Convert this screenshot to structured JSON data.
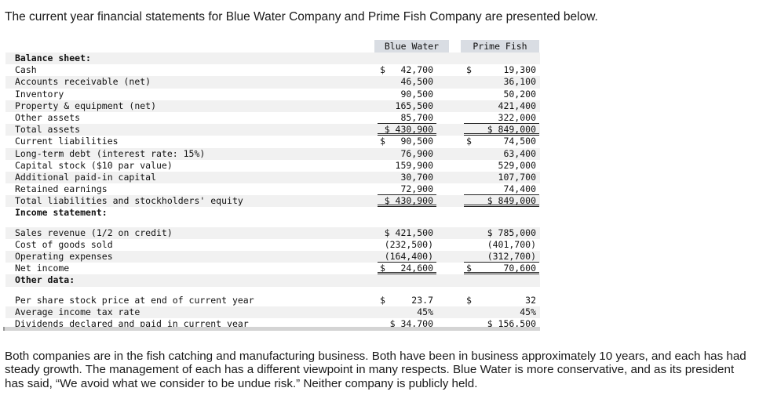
{
  "intro": "The current year financial statements for Blue Water Company and Prime Fish Company are presented below.",
  "columns": {
    "blue_water": "Blue Water",
    "prime_fish": "Prime Fish"
  },
  "rows": [
    {
      "label": "Balance sheet:",
      "bold": true,
      "shade": true
    },
    {
      "label": "Cash",
      "shade": false,
      "bw": "42,700",
      "bw_dollar": "$",
      "pf": "19,300",
      "pf_dollar": "$"
    },
    {
      "label": "Accounts receivable (net)",
      "shade": true,
      "bw": "46,500",
      "pf": "36,100"
    },
    {
      "label": "Inventory",
      "shade": false,
      "bw": "90,500",
      "pf": "50,200"
    },
    {
      "label": "Property & equipment (net)",
      "shade": true,
      "bw": "165,500",
      "pf": "421,400"
    },
    {
      "label": "Other assets",
      "shade": false,
      "bw": "85,700",
      "pf": "322,000",
      "rule": "single"
    },
    {
      "label": "Total assets",
      "shade": true,
      "bw": "$ 430,900",
      "pf": "$ 849,000",
      "rule": "double"
    },
    {
      "label": "Current liabilities",
      "shade": false,
      "bw": "90,500",
      "bw_dollar": "$",
      "pf": "74,500",
      "pf_dollar": "$"
    },
    {
      "label": "Long-term debt (interest rate: 15%)",
      "shade": true,
      "bw": "76,900",
      "pf": "63,400"
    },
    {
      "label": "Capital stock ($10 par value)",
      "shade": false,
      "bw": "159,900",
      "pf": "529,000"
    },
    {
      "label": "Additional paid-in capital",
      "shade": true,
      "bw": "30,700",
      "pf": "107,700"
    },
    {
      "label": "Retained earnings",
      "shade": false,
      "bw": "72,900",
      "pf": "74,400",
      "rule": "single"
    },
    {
      "label": "Total liabilities and stockholders' equity",
      "shade": true,
      "bw": "$ 430,900",
      "pf": "$ 849,000",
      "rule": "double"
    },
    {
      "label": "Income statement:",
      "bold": true,
      "shade": false,
      "gap_after": true
    },
    {
      "label": "Sales revenue (1/2 on credit)",
      "shade": true,
      "bw": "$ 421,500",
      "pf": "$ 785,000"
    },
    {
      "label": "Cost of goods sold",
      "shade": false,
      "bw": "(232,500)",
      "pf": "(401,700)"
    },
    {
      "label": "Operating expenses",
      "shade": true,
      "bw": "(164,400)",
      "pf": "(312,700)",
      "rule": "single"
    },
    {
      "label": "Net income",
      "shade": false,
      "bw": "24,600",
      "bw_dollar": "$",
      "pf": "70,600",
      "pf_dollar": "$",
      "rule": "double"
    },
    {
      "label": "Other data:",
      "bold": true,
      "shade": true,
      "gap_after": true
    },
    {
      "label": "Per share stock price at end of current year",
      "shade": false,
      "bw": "23.7",
      "bw_dollar": "$",
      "pf": "32",
      "pf_dollar": "$"
    },
    {
      "label": "Average income tax rate",
      "shade": true,
      "bw": "45%",
      "pf": "45%"
    },
    {
      "label": "Dividends declared and paid in current year",
      "shade": false,
      "bw": "$ 34,700",
      "pf": "$ 156,500"
    }
  ],
  "outro": "Both companies are in the fish catching and manufacturing business. Both have been in business approximately 10 years, and each has had steady growth. The management of each has a different viewpoint in many respects. Blue Water is more conservative, and as its president has said, “We avoid what we consider to be undue risk.” Neither company is publicly held."
}
